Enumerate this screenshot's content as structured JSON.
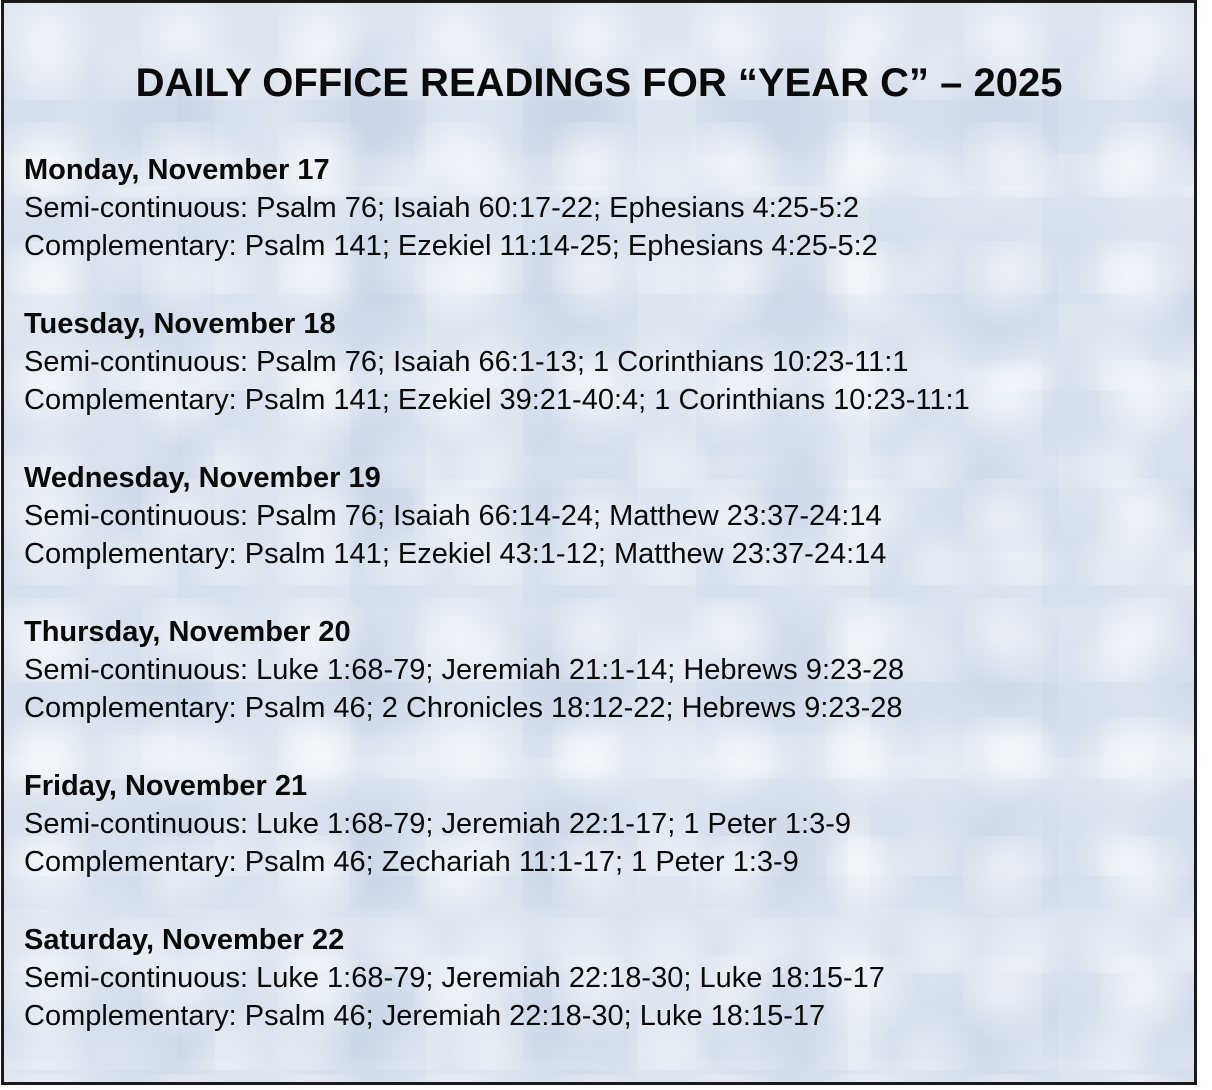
{
  "document": {
    "title": "DAILY OFFICE READINGS FOR “YEAR C” – 2025",
    "days": [
      {
        "label": "Monday, November 17",
        "semi_continuous": "Semi-continuous: Psalm 76; Isaiah 60:17-22; Ephesians 4:25-5:2",
        "complementary": "Complementary: Psalm 141; Ezekiel 11:14-25; Ephesians 4:25-5:2"
      },
      {
        "label": "Tuesday, November 18",
        "semi_continuous": "Semi-continuous: Psalm 76; Isaiah 66:1-13; 1 Corinthians 10:23-11:1",
        "complementary": "Complementary: Psalm 141; Ezekiel 39:21-40:4; 1 Corinthians 10:23-11:1"
      },
      {
        "label": "Wednesday, November 19",
        "semi_continuous": "Semi-continuous: Psalm 76; Isaiah 66:14-24; Matthew 23:37-24:14",
        "complementary": "Complementary: Psalm 141; Ezekiel 43:1-12; Matthew 23:37-24:14"
      },
      {
        "label": "Thursday, November 20",
        "semi_continuous": "Semi-continuous: Luke 1:68-79; Jeremiah 21:1-14; Hebrews 9:23-28",
        "complementary": "Complementary: Psalm 46; 2 Chronicles 18:12-22; Hebrews 9:23-28"
      },
      {
        "label": "Friday, November 21",
        "semi_continuous": "Semi-continuous: Luke 1:68-79; Jeremiah 22:1-17; 1 Peter 1:3-9",
        "complementary": "Complementary: Psalm 46; Zechariah 11:1-17; 1 Peter 1:3-9"
      },
      {
        "label": "Saturday, November 22",
        "semi_continuous": "Semi-continuous: Luke 1:68-79; Jeremiah 22:18-30; Luke 18:15-17",
        "complementary": "Complementary: Psalm 46; Jeremiah 22:18-30; Luke 18:15-17"
      }
    ],
    "colors": {
      "background": "#dde5f0",
      "border": "#1b1b1b",
      "text": "#0a0a0a",
      "page": "#ffffff"
    }
  }
}
